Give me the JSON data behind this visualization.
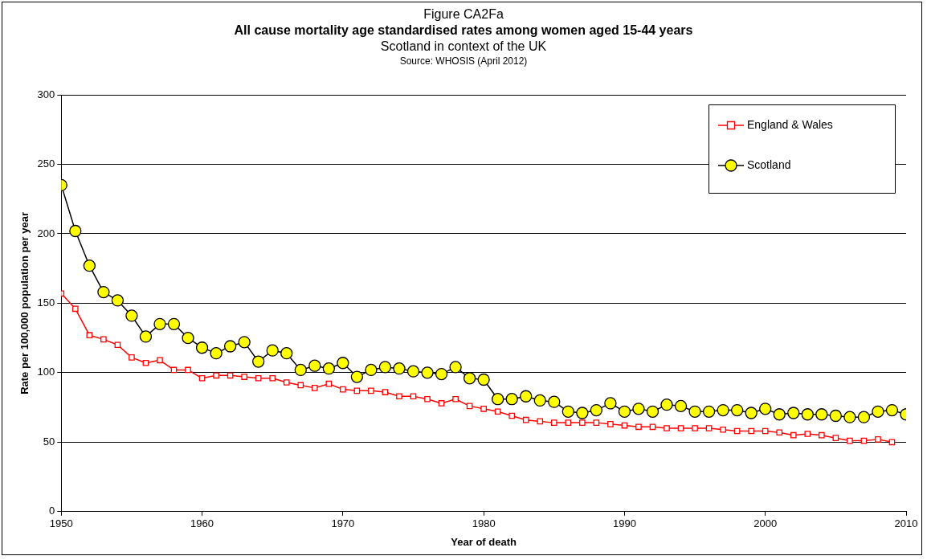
{
  "chart_data": {
    "type": "line",
    "title": "All cause mortality age standardised rates among women aged 15-44 years",
    "subtitle": "Scotland in context of the UK",
    "annotations": [
      "Figure CA2Fa",
      "Source: WHOSIS (April 2012)"
    ],
    "xlabel": "Year of death",
    "ylabel": "Rate per 100,000 population per year",
    "xlim": [
      1950,
      2010
    ],
    "xticks": [
      1950,
      1960,
      1970,
      1980,
      1990,
      2000,
      2010
    ],
    "ylim": [
      0,
      300
    ],
    "yticks": [
      0,
      50,
      100,
      150,
      200,
      250,
      300
    ],
    "grid": "y",
    "legend": "top right",
    "series": [
      {
        "name": "England & Wales",
        "color": "#ff0000",
        "marker": "square",
        "x": [
          1950,
          1951,
          1952,
          1953,
          1954,
          1955,
          1956,
          1957,
          1958,
          1959,
          1960,
          1961,
          1962,
          1963,
          1964,
          1965,
          1966,
          1967,
          1968,
          1969,
          1970,
          1971,
          1972,
          1973,
          1974,
          1975,
          1976,
          1977,
          1978,
          1979,
          1980,
          1981,
          1982,
          1983,
          1984,
          1985,
          1986,
          1987,
          1988,
          1989,
          1990,
          1991,
          1992,
          1993,
          1994,
          1995,
          1996,
          1997,
          1998,
          1999,
          2000,
          2001,
          2002,
          2003,
          2004,
          2005,
          2006,
          2007,
          2008,
          2009
        ],
        "values": [
          157,
          146,
          127,
          124,
          120,
          111,
          107,
          109,
          102,
          102,
          96,
          98,
          98,
          97,
          96,
          96,
          93,
          91,
          89,
          92,
          88,
          87,
          87,
          86,
          83,
          83,
          81,
          78,
          81,
          76,
          74,
          72,
          69,
          66,
          65,
          64,
          64,
          64,
          64,
          63,
          62,
          61,
          61,
          60,
          60,
          60,
          60,
          59,
          58,
          58,
          58,
          57,
          55,
          56,
          55,
          53,
          51,
          51,
          52,
          50
        ]
      },
      {
        "name": "Scotland",
        "color": "#ffff00",
        "marker": "circle",
        "x": [
          1950,
          1951,
          1952,
          1953,
          1954,
          1955,
          1956,
          1957,
          1958,
          1959,
          1960,
          1961,
          1962,
          1963,
          1964,
          1965,
          1966,
          1967,
          1968,
          1969,
          1970,
          1971,
          1972,
          1973,
          1974,
          1975,
          1976,
          1977,
          1978,
          1979,
          1980,
          1981,
          1982,
          1983,
          1984,
          1985,
          1986,
          1987,
          1988,
          1989,
          1990,
          1991,
          1992,
          1993,
          1994,
          1995,
          1996,
          1997,
          1998,
          1999,
          2000,
          2001,
          2002,
          2003,
          2004,
          2005,
          2006,
          2007,
          2008,
          2009,
          2010
        ],
        "values": [
          235,
          202,
          177,
          158,
          152,
          141,
          126,
          135,
          135,
          125,
          118,
          114,
          119,
          122,
          108,
          116,
          114,
          102,
          105,
          103,
          107,
          97,
          102,
          104,
          103,
          101,
          100,
          99,
          104,
          96,
          95,
          81,
          81,
          83,
          80,
          79,
          72,
          71,
          73,
          78,
          72,
          74,
          72,
          77,
          76,
          72,
          72,
          73,
          73,
          71,
          74,
          70,
          71,
          70,
          70,
          69,
          68,
          68,
          72,
          73,
          70
        ]
      }
    ]
  }
}
